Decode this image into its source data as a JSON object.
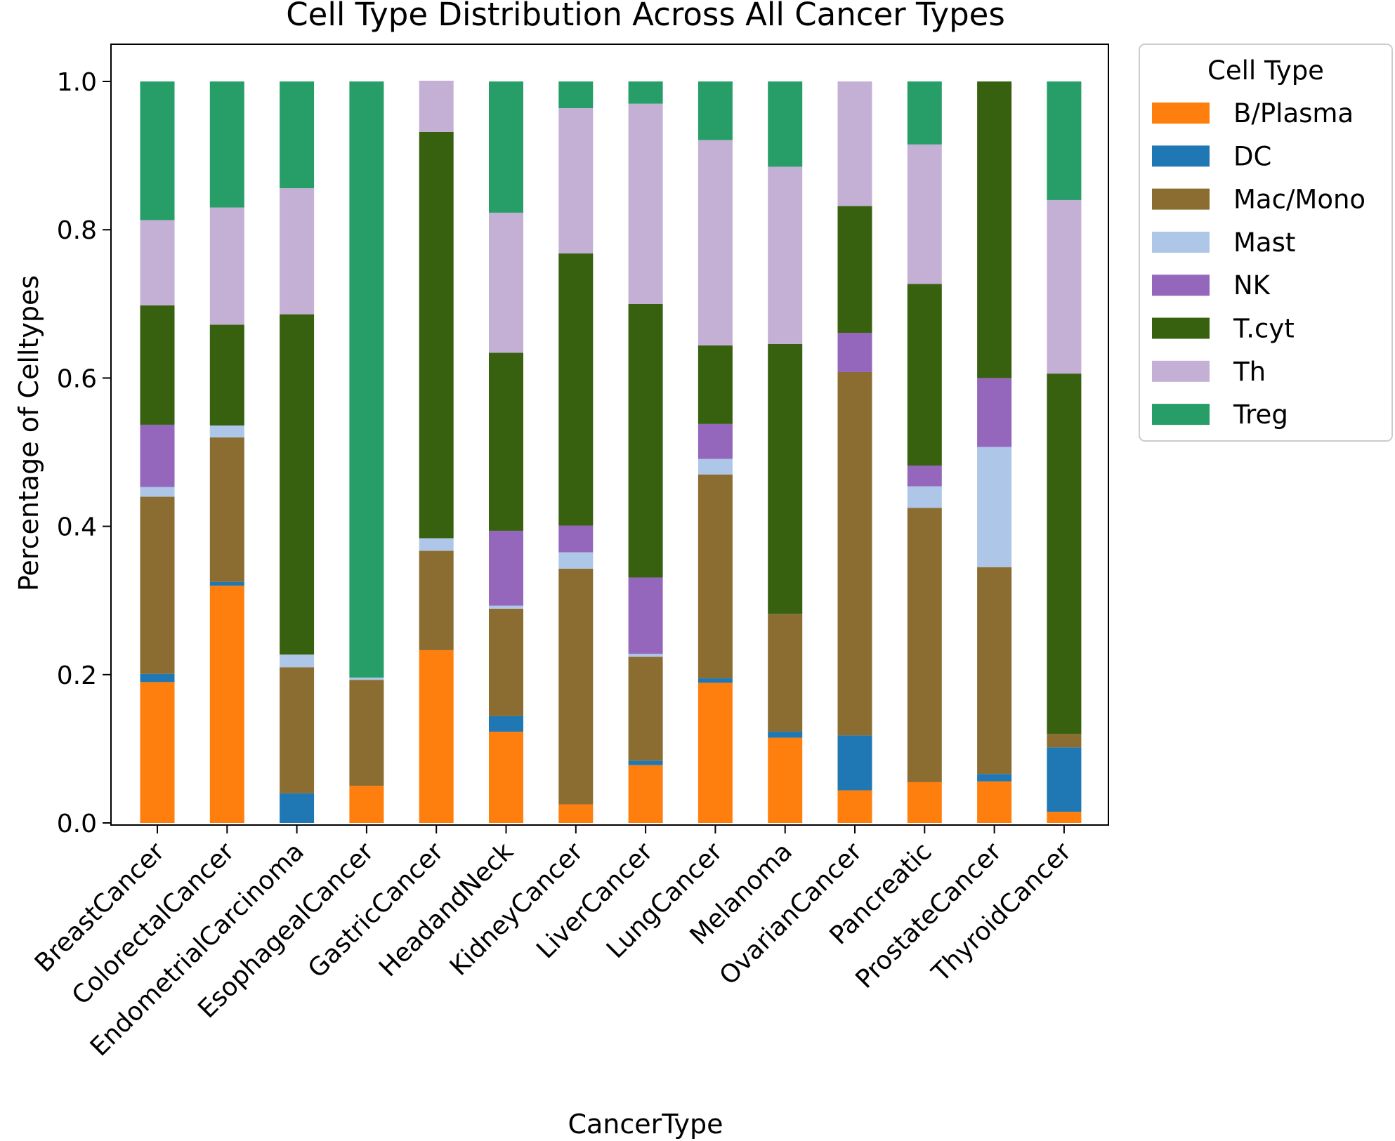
{
  "chart_data": {
    "type": "bar",
    "stacked": true,
    "title": "Cell Type Distribution Across All Cancer Types",
    "xlabel": "CancerType",
    "ylabel": "Percentage of Celltypes",
    "ylim": [
      0,
      1.0
    ],
    "yticks": [
      "0.0",
      "0.2",
      "0.4",
      "0.6",
      "0.8",
      "1.0"
    ],
    "grid": false,
    "legend": {
      "title": "Cell Type",
      "placement": "outside-right-top"
    },
    "categories": [
      "BreastCancer",
      "ColorectalCancer",
      "EndometrialCarcinoma",
      "EsophagealCancer",
      "GastricCancer",
      "HeadandNeck",
      "KidneyCancer",
      "LiverCancer",
      "LungCancer",
      "Melanoma",
      "OvarianCancer",
      "Pancreatic",
      "ProstateCancer",
      "ThyroidCancer"
    ],
    "series": [
      {
        "name": "B/Plasma",
        "color": "#ff7f0e",
        "values": [
          0.19,
          0.32,
          0.0,
          0.05,
          0.233,
          0.123,
          0.025,
          0.078,
          0.189,
          0.115,
          0.044,
          0.055,
          0.056,
          0.015
        ]
      },
      {
        "name": "DC",
        "color": "#1f77b4",
        "values": [
          0.011,
          0.005,
          0.04,
          0.0,
          0.0,
          0.021,
          0.0,
          0.006,
          0.006,
          0.008,
          0.074,
          0.0,
          0.01,
          0.087
        ]
      },
      {
        "name": "Mac/Mono",
        "color": "#8b6d31",
        "values": [
          0.239,
          0.195,
          0.17,
          0.143,
          0.134,
          0.145,
          0.318,
          0.14,
          0.275,
          0.159,
          0.49,
          0.37,
          0.279,
          0.018
        ]
      },
      {
        "name": "Mast",
        "color": "#aec7e8",
        "values": [
          0.013,
          0.016,
          0.017,
          0.003,
          0.017,
          0.004,
          0.022,
          0.004,
          0.021,
          0.0,
          0.0,
          0.029,
          0.162,
          0.0
        ]
      },
      {
        "name": "NK",
        "color": "#9467bd",
        "values": [
          0.084,
          0.0,
          0.0,
          0.0,
          0.0,
          0.101,
          0.036,
          0.103,
          0.047,
          0.0,
          0.053,
          0.028,
          0.093,
          0.0
        ]
      },
      {
        "name": "T.cyt",
        "color": "#38610f",
        "values": [
          0.161,
          0.136,
          0.459,
          0.0,
          0.548,
          0.24,
          0.367,
          0.369,
          0.106,
          0.364,
          0.171,
          0.245,
          0.4,
          0.486
        ]
      },
      {
        "name": "Th",
        "color": "#c5b0d5",
        "values": [
          0.115,
          0.158,
          0.17,
          0.0,
          0.069,
          0.189,
          0.196,
          0.27,
          0.277,
          0.239,
          0.168,
          0.188,
          0.0,
          0.234
        ]
      },
      {
        "name": "Treg",
        "color": "#279e68",
        "values": [
          0.187,
          0.17,
          0.144,
          0.804,
          0.0,
          0.177,
          0.036,
          0.03,
          0.079,
          0.115,
          0.0,
          0.085,
          0.0,
          0.16
        ]
      }
    ]
  }
}
